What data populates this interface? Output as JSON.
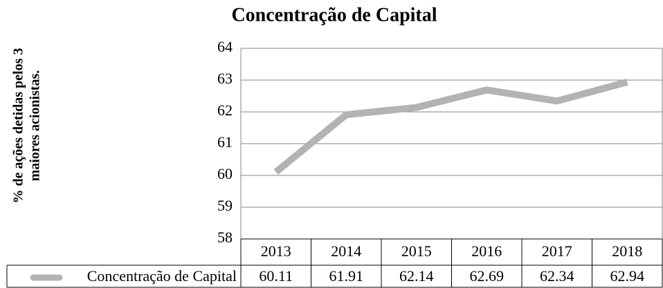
{
  "chart_data": {
    "type": "line",
    "title": "Concentração de Capital",
    "ylabel": [
      "% de ações detidas pelos 3",
      "maiores acionistas."
    ],
    "categories": [
      "2013",
      "2014",
      "2015",
      "2016",
      "2017",
      "2018"
    ],
    "series": [
      {
        "name": "Concentração de Capital",
        "color": "#b3b3b3",
        "values": [
          60.11,
          61.91,
          62.14,
          62.69,
          62.34,
          62.94
        ]
      }
    ],
    "ylim": [
      58,
      64
    ],
    "yticks": [
      58,
      59,
      60,
      61,
      62,
      63,
      64
    ],
    "grid": true,
    "data_table": true
  }
}
